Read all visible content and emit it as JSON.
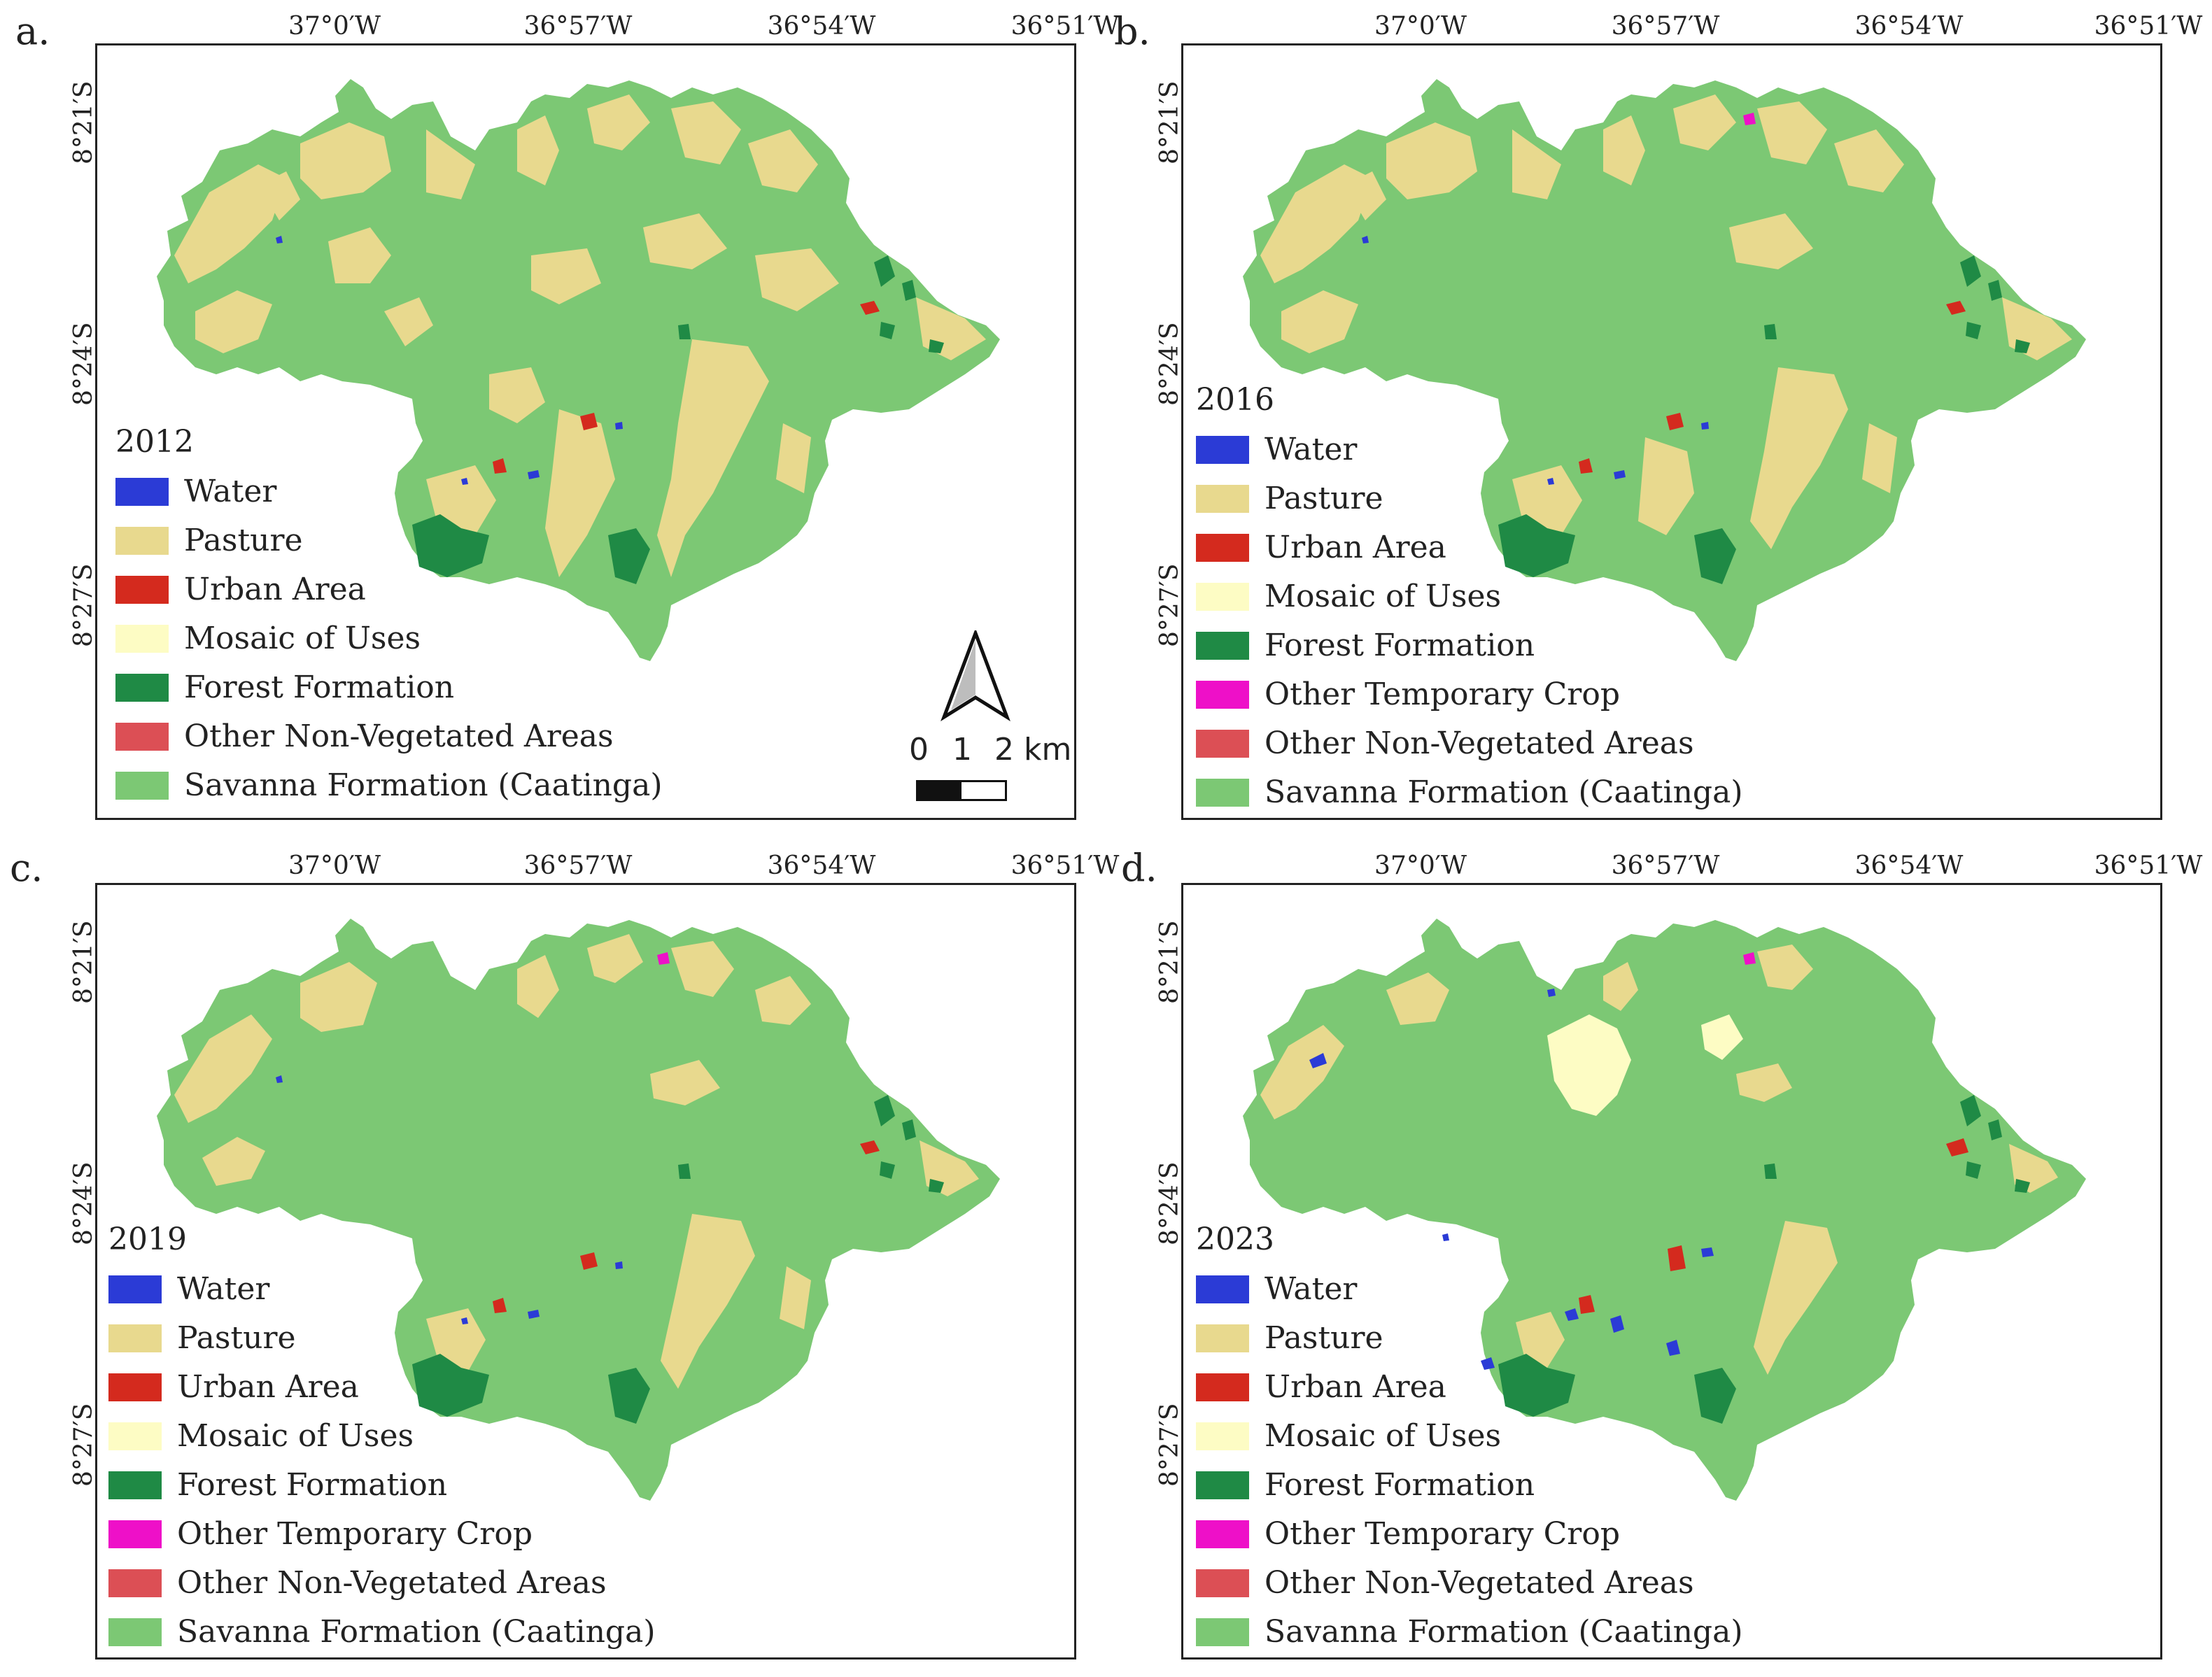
{
  "colors": {
    "water": "#2b3bd6",
    "pasture": "#e8d98e",
    "urban": "#d42a1e",
    "mosaic": "#fdfcc4",
    "forest": "#1f8a45",
    "temp_crop": "#ee10c8",
    "non_veg": "#dc4f55",
    "savanna": "#7cc874"
  },
  "lon_ticks": [
    "37°0′W",
    "36°57′W",
    "36°54′W",
    "36°51′W"
  ],
  "lat_ticks": [
    "8°21′S",
    "8°24′S",
    "8°27′S"
  ],
  "panels": [
    {
      "label": "a.",
      "year": "2012",
      "legend": [
        {
          "key": "water",
          "label": "Water"
        },
        {
          "key": "pasture",
          "label": " Pasture"
        },
        {
          "key": "urban",
          "label": "Urban Area"
        },
        {
          "key": "mosaic",
          "label": "Mosaic of Uses"
        },
        {
          "key": "forest",
          "label": "Forest Formation"
        },
        {
          "key": "non_veg",
          "label": "Other Non-Vegetated Areas"
        },
        {
          "key": "savanna",
          "label": "Savanna Formation (Caatinga)"
        }
      ],
      "scale": {
        "labels": [
          "0",
          "1",
          "2 km"
        ]
      }
    },
    {
      "label": "b.",
      "year": "2016",
      "legend": [
        {
          "key": "water",
          "label": "Water"
        },
        {
          "key": "pasture",
          "label": " Pasture"
        },
        {
          "key": "urban",
          "label": "Urban Area"
        },
        {
          "key": "mosaic",
          "label": "Mosaic of Uses"
        },
        {
          "key": "forest",
          "label": "Forest Formation"
        },
        {
          "key": "temp_crop",
          "label": "Other Temporary Crop"
        },
        {
          "key": "non_veg",
          "label": "Other Non-Vegetated Areas"
        },
        {
          "key": "savanna",
          "label": "Savanna Formation (Caatinga)"
        }
      ]
    },
    {
      "label": "c.",
      "year": "2019",
      "legend": [
        {
          "key": "water",
          "label": "Water"
        },
        {
          "key": "pasture",
          "label": " Pasture"
        },
        {
          "key": "urban",
          "label": "Urban Area"
        },
        {
          "key": "mosaic",
          "label": "Mosaic of Uses"
        },
        {
          "key": "forest",
          "label": "Forest Formation"
        },
        {
          "key": "temp_crop",
          "label": "Other Temporary Crop"
        },
        {
          "key": "non_veg",
          "label": "Other Non-Vegetated Areas"
        },
        {
          "key": "savanna",
          "label": "Savanna Formation (Caatinga)"
        }
      ]
    },
    {
      "label": "d.",
      "year": "2023",
      "legend": [
        {
          "key": "water",
          "label": "Water"
        },
        {
          "key": "pasture",
          "label": " Pasture"
        },
        {
          "key": "urban",
          "label": "Urban Area"
        },
        {
          "key": "mosaic",
          "label": "Mosaic of Uses"
        },
        {
          "key": "forest",
          "label": "Forest Formation"
        },
        {
          "key": "temp_crop",
          "label": "Other Temporary Crop"
        },
        {
          "key": "non_veg",
          "label": "Other Non-Vegetated Areas"
        },
        {
          "key": "savanna",
          "label": "Savanna Formation (Caatinga)"
        }
      ]
    }
  ]
}
